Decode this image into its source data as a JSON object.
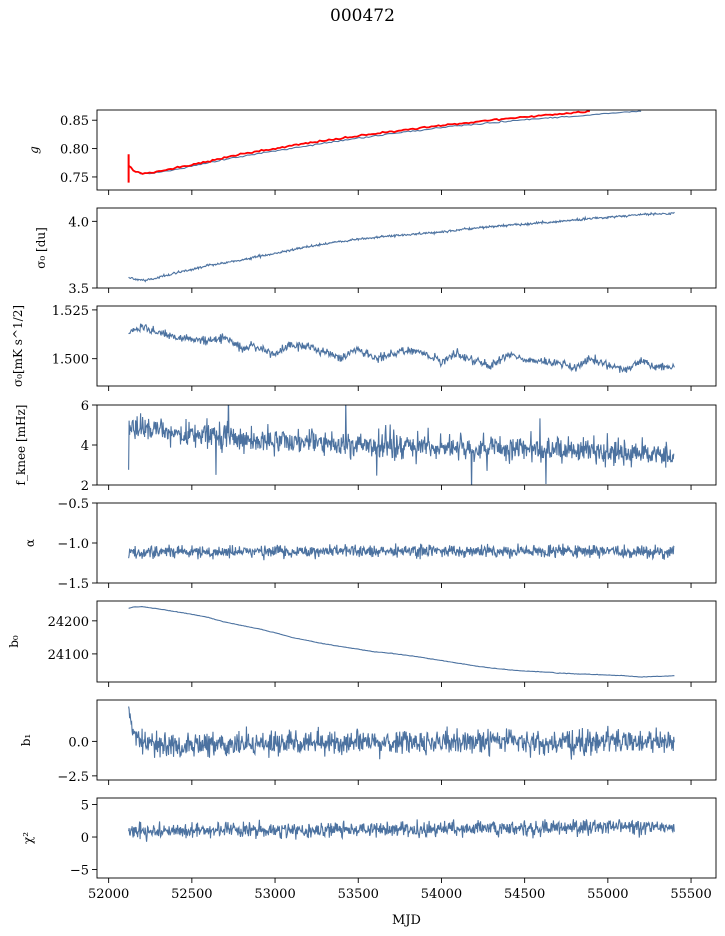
{
  "title": "000472",
  "colors": {
    "series": "#4c72a0",
    "model": "#ff0000"
  },
  "chart_data": [
    {
      "type": "line",
      "panel": "g",
      "ylabel": "g",
      "xlim": [
        51930,
        55650
      ],
      "ylim": [
        0.727,
        0.868
      ],
      "yticks": [
        0.75,
        0.8,
        0.85
      ],
      "ytick_labels": [
        "0.75",
        "0.80",
        "0.85"
      ],
      "series": [
        {
          "color": "#4c72a0",
          "x": [
            52120,
            52150,
            52200,
            52250,
            52300,
            52400,
            52500,
            52600,
            52700,
            52800,
            52900,
            53000,
            53200,
            53400,
            53600,
            53800,
            54000,
            54200,
            54400,
            54600,
            54800,
            55000,
            55100,
            55200
          ],
          "y": [
            0.772,
            0.762,
            0.755,
            0.756,
            0.758,
            0.763,
            0.769,
            0.775,
            0.781,
            0.786,
            0.791,
            0.796,
            0.805,
            0.814,
            0.822,
            0.83,
            0.837,
            0.843,
            0.848,
            0.853,
            0.857,
            0.862,
            0.864,
            0.866
          ]
        },
        {
          "color": "#ff0000",
          "x": [
            52120,
            52150,
            52200,
            52250,
            52300,
            52400,
            52500,
            52600,
            52700,
            52800,
            52900,
            53000,
            53200,
            53400,
            53600,
            53800,
            54000,
            54200,
            54400,
            54600,
            54800,
            54900
          ],
          "y": [
            0.77,
            0.761,
            0.756,
            0.757,
            0.76,
            0.765,
            0.771,
            0.778,
            0.784,
            0.79,
            0.795,
            0.8,
            0.81,
            0.818,
            0.826,
            0.834,
            0.841,
            0.847,
            0.853,
            0.858,
            0.863,
            0.866
          ]
        }
      ]
    },
    {
      "type": "line",
      "panel": "sigma0",
      "ylabel": "σ₀ [du]",
      "xlim": [
        51930,
        55650
      ],
      "ylim": [
        3.5,
        4.1
      ],
      "yticks": [
        3.5,
        4.0
      ],
      "ytick_labels": [
        "3.5",
        "4.0"
      ],
      "series": [
        {
          "color": "#4c72a0",
          "x": [
            52120,
            52150,
            52200,
            52250,
            52300,
            52400,
            52500,
            52600,
            52700,
            52800,
            53000,
            53200,
            53400,
            53600,
            53800,
            54000,
            54200,
            54400,
            54600,
            54800,
            55000,
            55200,
            55400
          ],
          "y": [
            3.58,
            3.57,
            3.56,
            3.565,
            3.58,
            3.61,
            3.64,
            3.67,
            3.69,
            3.71,
            3.76,
            3.81,
            3.85,
            3.88,
            3.9,
            3.92,
            3.95,
            3.97,
            3.99,
            4.01,
            4.03,
            4.05,
            4.06
          ]
        }
      ]
    },
    {
      "type": "line",
      "panel": "sigma0-mk",
      "ylabel": "σ₀[mK s^1/2]",
      "xlim": [
        51930,
        55650
      ],
      "ylim": [
        1.486,
        1.527
      ],
      "yticks": [
        1.5,
        1.525
      ],
      "ytick_labels": [
        "1.500",
        "1.525"
      ],
      "series": [
        {
          "color": "#4c72a0",
          "x": [
            52120,
            52200,
            52300,
            52400,
            52500,
            52600,
            52700,
            52800,
            52900,
            53000,
            53100,
            53200,
            53300,
            53400,
            53500,
            53600,
            53700,
            53800,
            53900,
            54000,
            54100,
            54200,
            54300,
            54400,
            54500,
            54600,
            54700,
            54800,
            54900,
            55000,
            55100,
            55200,
            55300,
            55400
          ],
          "y": [
            1.513,
            1.516,
            1.513,
            1.511,
            1.51,
            1.509,
            1.511,
            1.505,
            1.506,
            1.502,
            1.507,
            1.506,
            1.503,
            1.5,
            1.505,
            1.5,
            1.502,
            1.505,
            1.502,
            1.499,
            1.503,
            1.499,
            1.496,
            1.502,
            1.5,
            1.499,
            1.498,
            1.495,
            1.5,
            1.497,
            1.494,
            1.499,
            1.496,
            1.495
          ]
        }
      ]
    },
    {
      "type": "line",
      "panel": "fknee",
      "ylabel": "f_knee [mHz]",
      "xlim": [
        51930,
        55650
      ],
      "ylim": [
        2,
        6
      ],
      "yticks": [
        2,
        4,
        6
      ],
      "ytick_labels": [
        "2",
        "4",
        "6"
      ],
      "series": [
        {
          "color": "#4c72a0",
          "x": [
            52120,
            52200,
            52300,
            52400,
            52500,
            52600,
            52700,
            52800,
            52900,
            53000,
            53200,
            53400,
            53600,
            53800,
            54000,
            54200,
            54400,
            54600,
            54800,
            55000,
            55200,
            55400
          ],
          "y": [
            5.0,
            4.9,
            4.7,
            4.6,
            4.5,
            4.4,
            4.3,
            4.3,
            4.2,
            4.1,
            4.1,
            4.0,
            4.0,
            3.9,
            3.9,
            3.8,
            3.8,
            3.8,
            3.7,
            3.7,
            3.6,
            3.5
          ]
        }
      ]
    },
    {
      "type": "line",
      "panel": "alpha",
      "ylabel": "α",
      "xlim": [
        51930,
        55650
      ],
      "ylim": [
        -1.5,
        -0.5
      ],
      "yticks": [
        -1.5,
        -1.0,
        -0.5
      ],
      "ytick_labels": [
        "−1.5",
        "−1.0",
        "−0.5"
      ],
      "series": [
        {
          "color": "#4c72a0",
          "x": [
            52120,
            52400,
            52700,
            53000,
            53300,
            53600,
            53900,
            54200,
            54500,
            54800,
            55100,
            55400
          ],
          "y": [
            -1.12,
            -1.11,
            -1.11,
            -1.1,
            -1.1,
            -1.1,
            -1.1,
            -1.1,
            -1.1,
            -1.1,
            -1.1,
            -1.13
          ]
        }
      ]
    },
    {
      "type": "line",
      "panel": "b0",
      "ylabel": "b₀",
      "xlim": [
        51930,
        55650
      ],
      "ylim": [
        24015,
        24260
      ],
      "yticks": [
        24100,
        24200
      ],
      "ytick_labels": [
        "24100",
        "24200"
      ],
      "series": [
        {
          "color": "#4c72a0",
          "x": [
            52120,
            52150,
            52200,
            52300,
            52400,
            52500,
            52600,
            52700,
            52800,
            52900,
            53000,
            53100,
            53200,
            53300,
            53400,
            53500,
            53600,
            53700,
            53800,
            53900,
            54000,
            54100,
            54200,
            54300,
            54400,
            54500,
            54600,
            54700,
            54800,
            54900,
            55000,
            55100,
            55200,
            55300,
            55400
          ],
          "y": [
            24238,
            24242,
            24243,
            24236,
            24228,
            24220,
            24210,
            24196,
            24186,
            24176,
            24164,
            24150,
            24140,
            24130,
            24122,
            24114,
            24106,
            24102,
            24095,
            24088,
            24080,
            24072,
            24064,
            24057,
            24052,
            24048,
            24046,
            24042,
            24040,
            24038,
            24036,
            24034,
            24030,
            24032,
            24034
          ]
        }
      ]
    },
    {
      "type": "line",
      "panel": "b1",
      "ylabel": "b₁",
      "xlim": [
        51930,
        55650
      ],
      "ylim": [
        -2.8,
        3.0
      ],
      "yticks": [
        -2.5,
        0.0
      ],
      "ytick_labels": [
        "−2.5",
        "0.0"
      ],
      "series": [
        {
          "color": "#4c72a0",
          "x": [
            52120,
            52130,
            52150,
            52180,
            52220,
            52300,
            52500,
            52800,
            53100,
            53400,
            53700,
            54000,
            54300,
            54600,
            54900,
            55200,
            55400
          ],
          "y": [
            2.3,
            1.5,
            0.6,
            0.1,
            -0.2,
            -0.2,
            -0.3,
            -0.2,
            -0.1,
            -0.1,
            -0.1,
            0.0,
            0.0,
            -0.1,
            0.0,
            0.0,
            0.0
          ]
        }
      ]
    },
    {
      "type": "line",
      "panel": "chi2",
      "ylabel": "χ²",
      "xlim": [
        51930,
        55650
      ],
      "ylim": [
        -6.3,
        6.0
      ],
      "yticks": [
        -5,
        0,
        5
      ],
      "ytick_labels": [
        "−5",
        "0",
        "5"
      ],
      "series": [
        {
          "color": "#4c72a0",
          "x": [
            52120,
            52400,
            52700,
            53000,
            53300,
            53600,
            53900,
            54200,
            54500,
            54800,
            55100,
            55400
          ],
          "y": [
            0.8,
            1.0,
            1.1,
            1.0,
            1.1,
            1.2,
            1.2,
            1.3,
            1.3,
            1.5,
            1.6,
            1.5
          ]
        }
      ]
    }
  ],
  "xaxis": {
    "label": "MJD",
    "ticks": [
      52000,
      52500,
      53000,
      53500,
      54000,
      54500,
      55000,
      55500
    ],
    "tick_labels": [
      "52000",
      "52500",
      "53000",
      "53500",
      "54000",
      "54500",
      "55000",
      "55500"
    ]
  }
}
